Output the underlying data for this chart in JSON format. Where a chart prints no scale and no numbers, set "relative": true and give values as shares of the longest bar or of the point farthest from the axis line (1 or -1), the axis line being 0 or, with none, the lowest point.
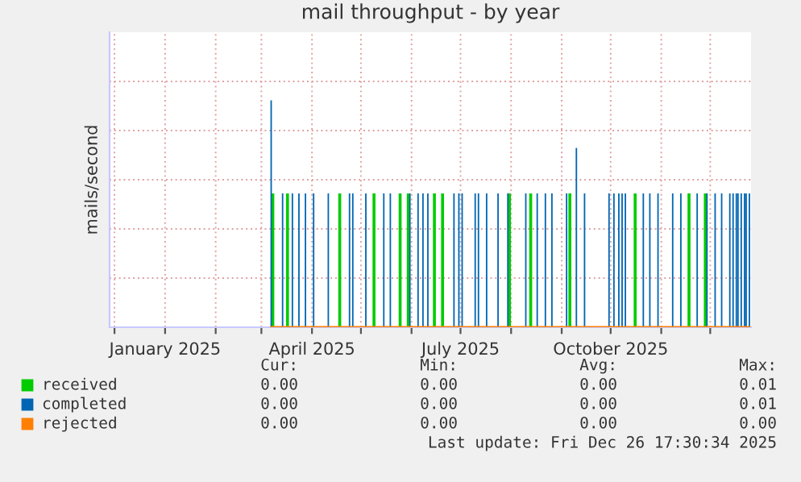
{
  "chart_data": {
    "type": "bar",
    "title": "mail throughput - by year",
    "ylabel": "mails/second",
    "relative": true,
    "grid": true,
    "legend": "bottom",
    "xlim": [
      "2024-11-28",
      "2025-12-26"
    ],
    "xticks": [
      {
        "value": "2024-12-01",
        "label": null
      },
      {
        "value": "2025-01-01",
        "label": "January 2025"
      },
      {
        "value": "2025-02-01",
        "label": null
      },
      {
        "value": "2025-03-01",
        "label": null
      },
      {
        "value": "2025-04-01",
        "label": "April 2025"
      },
      {
        "value": "2025-05-01",
        "label": null
      },
      {
        "value": "2025-06-01",
        "label": null
      },
      {
        "value": "2025-07-01",
        "label": "July 2025"
      },
      {
        "value": "2025-08-01",
        "label": null
      },
      {
        "value": "2025-09-01",
        "label": null
      },
      {
        "value": "2025-10-01",
        "label": "October 2025"
      },
      {
        "value": "2025-11-01",
        "label": null
      },
      {
        "value": "2025-12-01",
        "label": null
      }
    ],
    "series": [
      {
        "name": "received",
        "color": "#00cc00",
        "x": [
          "2025-03-08",
          "2025-03-17",
          "2025-04-18",
          "2025-05-09",
          "2025-05-25",
          "2025-05-30",
          "2025-06-15",
          "2025-06-20",
          "2025-07-31",
          "2025-08-13",
          "2025-09-06",
          "2025-10-16",
          "2025-11-18",
          "2025-11-28"
        ],
        "values": [
          0.59,
          0.59,
          0.59,
          0.59,
          0.59,
          0.59,
          0.59,
          0.59,
          0.59,
          0.59,
          0.59,
          0.59,
          0.59,
          0.59
        ]
      },
      {
        "name": "completed",
        "color": "#0066b3",
        "x": [
          "2025-03-07",
          "2025-03-14",
          "2025-03-20",
          "2025-03-24",
          "2025-03-28",
          "2025-04-02",
          "2025-04-11",
          "2025-04-24",
          "2025-04-26",
          "2025-05-04",
          "2025-05-15",
          "2025-05-19",
          "2025-05-31",
          "2025-06-05",
          "2025-06-08",
          "2025-06-11",
          "2025-06-27",
          "2025-06-30",
          "2025-07-02",
          "2025-07-10",
          "2025-07-12",
          "2025-07-17",
          "2025-07-24",
          "2025-07-30",
          "2025-08-10",
          "2025-08-17",
          "2025-08-22",
          "2025-08-26",
          "2025-09-04",
          "2025-09-10",
          "2025-09-15",
          "2025-09-30",
          "2025-10-03",
          "2025-10-06",
          "2025-10-08",
          "2025-10-10",
          "2025-10-21",
          "2025-10-25",
          "2025-10-30",
          "2025-11-08",
          "2025-11-13",
          "2025-11-23",
          "2025-11-29",
          "2025-12-04",
          "2025-12-08",
          "2025-12-13",
          "2025-12-15",
          "2025-12-17",
          "2025-12-18",
          "2025-12-20",
          "2025-12-22",
          "2025-12-23",
          "2025-12-25"
        ],
        "values": [
          1.0,
          0.59,
          0.59,
          0.59,
          0.59,
          0.59,
          0.59,
          0.59,
          0.59,
          0.59,
          0.59,
          0.59,
          0.59,
          0.59,
          0.59,
          0.59,
          0.59,
          0.59,
          0.59,
          0.59,
          0.59,
          0.59,
          0.59,
          0.59,
          0.59,
          0.59,
          0.59,
          0.59,
          0.59,
          0.79,
          0.59,
          0.59,
          0.59,
          0.59,
          0.59,
          0.59,
          0.59,
          0.59,
          0.59,
          0.59,
          0.59,
          0.59,
          0.59,
          0.59,
          0.59,
          0.59,
          0.59,
          0.59,
          0.59,
          0.59,
          0.59,
          0.59,
          0.59
        ]
      },
      {
        "name": "rejected",
        "color": "#ff8000",
        "type": "line",
        "x": [
          "2025-03-07",
          "2025-12-25"
        ],
        "values": [
          0,
          0
        ]
      }
    ],
    "annotations": [
      "Cur:",
      "Min:",
      "Avg:",
      "Max:",
      "0.00",
      "0.00",
      "0.00",
      "0.01",
      "0.00",
      "0.00",
      "0.00",
      "0.01",
      "0.00",
      "0.00",
      "0.00",
      "0.00",
      "Last update: Fri Dec 26 17:30:34 2025"
    ]
  }
}
